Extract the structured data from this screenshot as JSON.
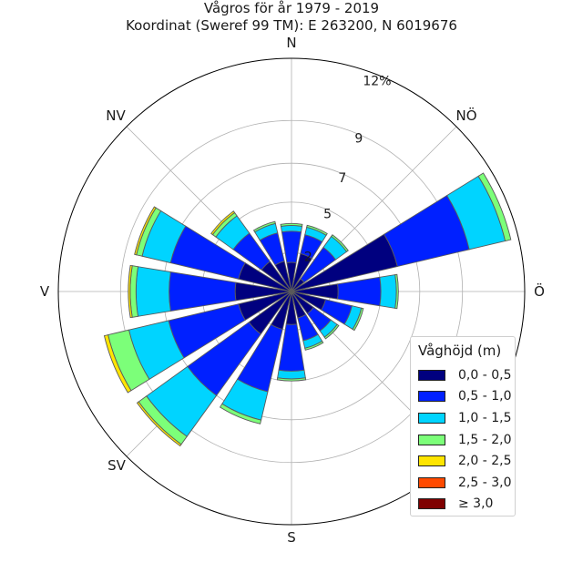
{
  "chart_data": {
    "type": "polar-stacked-bar",
    "title": "Vågros för år 1979 - 2019",
    "subtitle": "Koordinat (Sweref 99 TM): E 263200, N 6019676",
    "directions": [
      "N",
      "NÖ",
      "Ö",
      "SV",
      "S",
      "V",
      "NV"
    ],
    "radial_ticks": [
      "2",
      "5",
      "7",
      "9",
      "12%"
    ],
    "radial_max": 12,
    "legend_title": "Våghöjd (m)",
    "bins": [
      {
        "label": "0,0 - 0,5",
        "color": "#00007f"
      },
      {
        "label": "0,5 - 1,0",
        "color": "#0020ff"
      },
      {
        "label": "1,0 - 1,5",
        "color": "#00d4ff"
      },
      {
        "label": "1,5 - 2,0",
        "color": "#7cff79"
      },
      {
        "label": "2,0 - 2,5",
        "color": "#ffe500"
      },
      {
        "label": "2,5 - 3,0",
        "color": "#ff4a00"
      },
      {
        "label": "≥ 3,0",
        "color": "#7f0000"
      }
    ],
    "sectors": [
      {
        "angle": 0,
        "values": [
          1.5,
          1.6,
          0.3,
          0.1,
          0,
          0,
          0
        ]
      },
      {
        "angle": 22.5,
        "values": [
          2.0,
          1.0,
          0.4,
          0.1,
          0,
          0,
          0
        ]
      },
      {
        "angle": 45,
        "values": [
          0.8,
          2.0,
          0.7,
          0.1,
          0,
          0,
          0
        ]
      },
      {
        "angle": 67.5,
        "values": [
          5.6,
          3.8,
          1.9,
          0.3,
          0,
          0,
          0
        ]
      },
      {
        "angle": 90,
        "values": [
          2.4,
          2.2,
          0.8,
          0.1,
          0,
          0,
          0
        ]
      },
      {
        "angle": 112.5,
        "values": [
          1.8,
          1.4,
          0.5,
          0.1,
          0,
          0,
          0
        ]
      },
      {
        "angle": 135,
        "values": [
          1.4,
          1.1,
          0.4,
          0.1,
          0,
          0,
          0
        ]
      },
      {
        "angle": 157.5,
        "values": [
          1.4,
          1.2,
          0.4,
          0.1,
          0,
          0,
          0
        ]
      },
      {
        "angle": 180,
        "values": [
          1.7,
          2.4,
          0.4,
          0.1,
          0,
          0,
          0
        ]
      },
      {
        "angle": 202.5,
        "values": [
          2.0,
          3.3,
          1.5,
          0.2,
          0,
          0,
          0
        ]
      },
      {
        "angle": 225,
        "values": [
          2.7,
          3.9,
          2.6,
          0.5,
          0.1,
          0,
          0
        ]
      },
      {
        "angle": 247.5,
        "values": [
          2.8,
          3.7,
          2.1,
          1.1,
          0.2,
          0,
          0
        ]
      },
      {
        "angle": 270,
        "values": [
          2.9,
          3.4,
          1.7,
          0.3,
          0.1,
          0,
          0
        ]
      },
      {
        "angle": 292.5,
        "values": [
          2.8,
          3.6,
          1.5,
          0.3,
          0.1,
          0,
          0
        ]
      },
      {
        "angle": 315,
        "values": [
          1.9,
          1.8,
          1.1,
          0.2,
          0.1,
          0,
          0
        ]
      },
      {
        "angle": 337.5,
        "values": [
          1.6,
          1.5,
          0.5,
          0.1,
          0,
          0,
          0
        ]
      }
    ]
  },
  "compass": {
    "n": "N",
    "ne": "NÖ",
    "e": "Ö",
    "sw": "SV",
    "s": "S",
    "w": "V",
    "nw": "NV"
  }
}
